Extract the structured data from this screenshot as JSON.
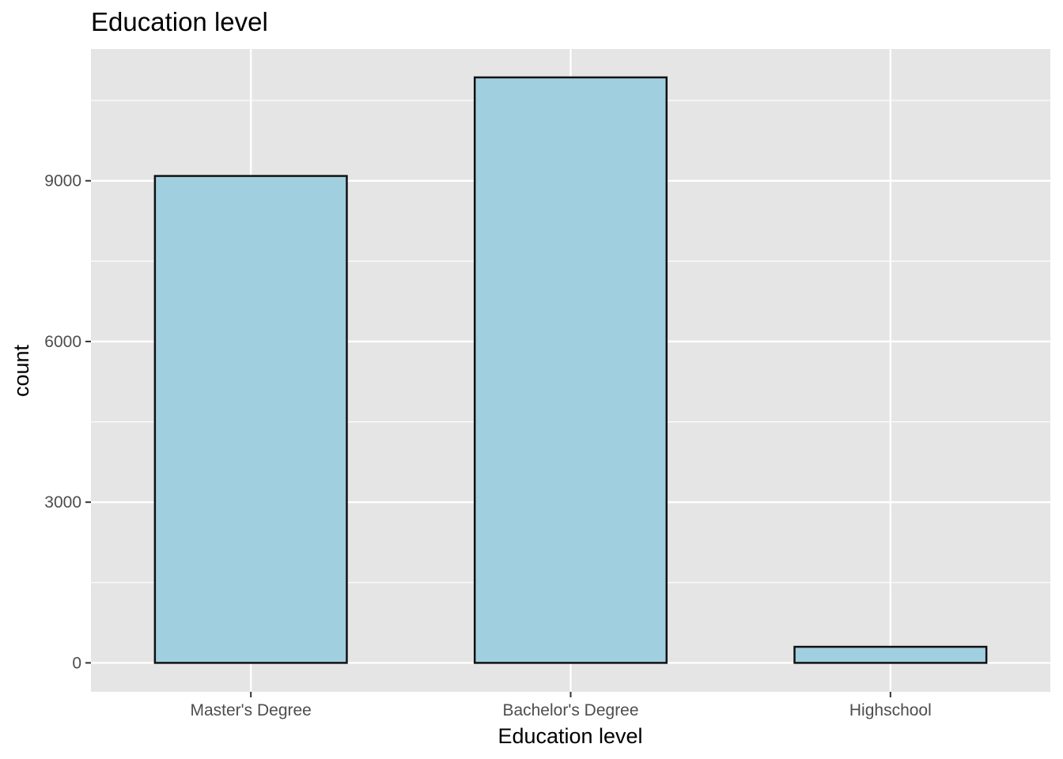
{
  "chart_data": {
    "type": "bar",
    "title": "Education level",
    "xlabel": "Education level",
    "ylabel": "count",
    "categories": [
      "Master's Degree",
      "Bachelor's Degree",
      "Highschool"
    ],
    "values": [
      9090,
      10930,
      300
    ],
    "ylim": [
      -540,
      11460
    ],
    "yticks": [
      0,
      3000,
      6000,
      9000
    ],
    "ytick_labels": [
      "0",
      "3000",
      "6000",
      "9000"
    ],
    "grid": true,
    "legend": "none",
    "colors": {
      "panel_background": "#e5e5e5",
      "grid_line": "#ffffff",
      "bar_fill": "#a0cfe0",
      "bar_stroke": "#111111",
      "tick_mark": "#333333",
      "tick_label": "#4d4d4d"
    }
  }
}
